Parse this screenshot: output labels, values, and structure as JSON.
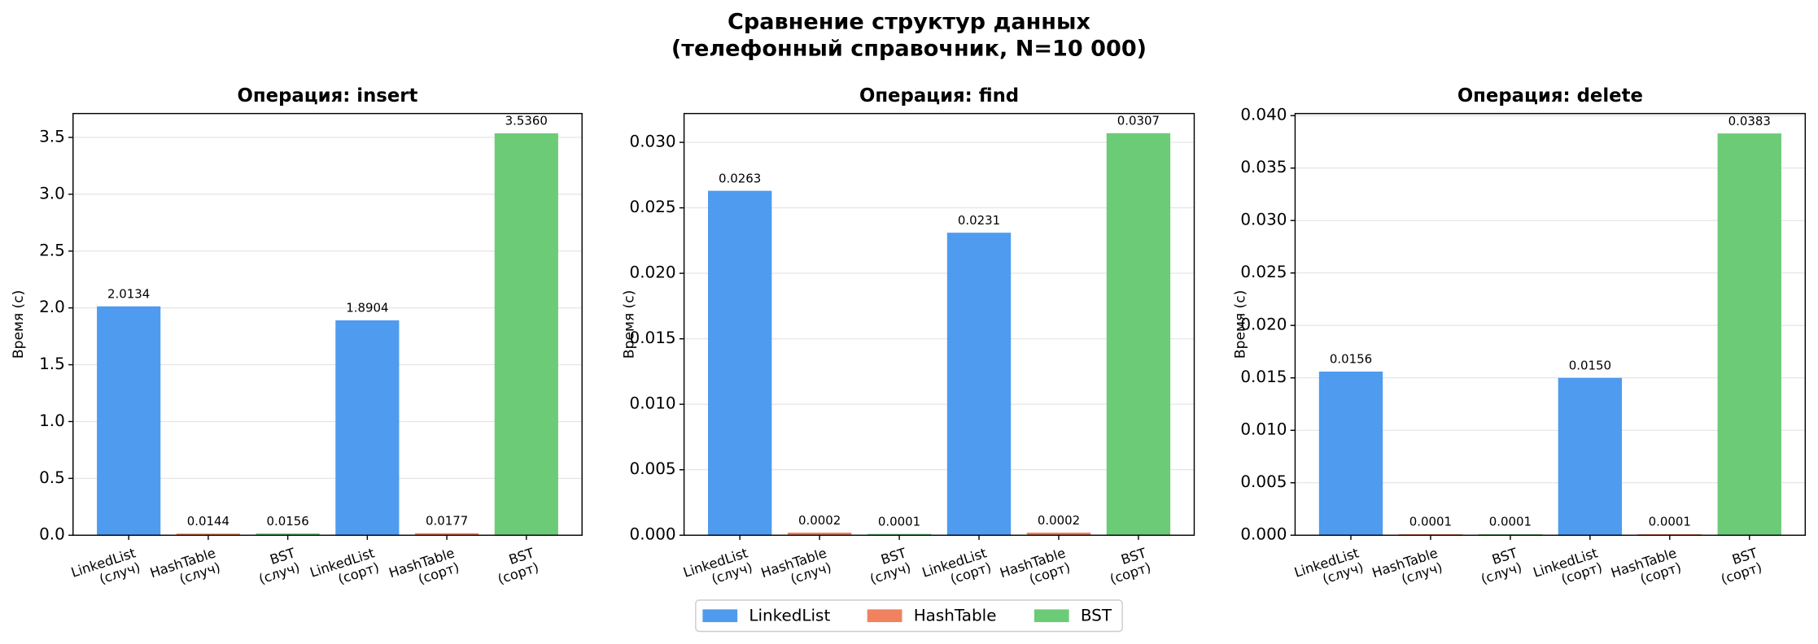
{
  "title": "Сравнение структур данных\n(телефонный справочник, N=10 000)",
  "legend": [
    {
      "name": "LinkedList",
      "color": "#4f9bef"
    },
    {
      "name": "HashTable",
      "color": "#f0825f"
    },
    {
      "name": "BST",
      "color": "#6ccb77"
    }
  ],
  "chart_data": [
    {
      "type": "bar",
      "title": "Операция: insert",
      "ylabel": "Время (с)",
      "categories": [
        "LinkedList\n(случ)",
        "HashTable\n(случ)",
        "BST\n(случ)",
        "LinkedList\n(сорт)",
        "HashTable\n(сорт)",
        "BST\n(сорт)"
      ],
      "series": [
        {
          "values": [
            2.0134,
            null,
            null,
            1.8904,
            null,
            null
          ],
          "value_labels": [
            "2.0134",
            null,
            null,
            "1.8904",
            null,
            null
          ]
        },
        {
          "values": [
            null,
            0.0144,
            null,
            null,
            0.0177,
            null
          ],
          "value_labels": [
            null,
            "0.0144",
            null,
            null,
            "0.0177",
            null
          ]
        },
        {
          "values": [
            null,
            null,
            0.0156,
            null,
            null,
            3.536
          ],
          "value_labels": [
            null,
            null,
            "0.0156",
            null,
            null,
            "3.5360"
          ]
        }
      ],
      "ylim": [
        0,
        3.71
      ],
      "yticks": [
        {
          "value": 0,
          "label": "0.0"
        },
        {
          "value": 0.5,
          "label": "0.5"
        },
        {
          "value": 1,
          "label": "1.0"
        },
        {
          "value": 1.5,
          "label": "1.5"
        },
        {
          "value": 2,
          "label": "2.0"
        },
        {
          "value": 2.5,
          "label": "2.5"
        },
        {
          "value": 3,
          "label": "3.0"
        },
        {
          "value": 3.5,
          "label": "3.5"
        }
      ],
      "grid": true
    },
    {
      "type": "bar",
      "title": "Операция: find",
      "ylabel": "Время (с)",
      "categories": [
        "LinkedList\n(случ)",
        "HashTable\n(случ)",
        "BST\n(случ)",
        "LinkedList\n(сорт)",
        "HashTable\n(сорт)",
        "BST\n(сорт)"
      ],
      "series": [
        {
          "values": [
            0.0263,
            null,
            null,
            0.0231,
            null,
            null
          ],
          "value_labels": [
            "0.0263",
            null,
            null,
            "0.0231",
            null,
            null
          ]
        },
        {
          "values": [
            null,
            0.0002,
            null,
            null,
            0.0002,
            null
          ],
          "value_labels": [
            null,
            "0.0002",
            null,
            null,
            "0.0002",
            null
          ]
        },
        {
          "values": [
            null,
            null,
            0.0001,
            null,
            null,
            0.0307
          ],
          "value_labels": [
            null,
            null,
            "0.0001",
            null,
            null,
            "0.0307"
          ]
        }
      ],
      "ylim": [
        0,
        0.0322
      ],
      "yticks": [
        {
          "value": 0,
          "label": "0.000"
        },
        {
          "value": 0.005,
          "label": "0.005"
        },
        {
          "value": 0.01,
          "label": "0.010"
        },
        {
          "value": 0.015,
          "label": "0.015"
        },
        {
          "value": 0.02,
          "label": "0.020"
        },
        {
          "value": 0.025,
          "label": "0.025"
        },
        {
          "value": 0.03,
          "label": "0.030"
        }
      ],
      "grid": true
    },
    {
      "type": "bar",
      "title": "Операция: delete",
      "ylabel": "Время (с)",
      "categories": [
        "LinkedList\n(случ)",
        "HashTable\n(случ)",
        "BST\n(случ)",
        "LinkedList\n(сорт)",
        "HashTable\n(сорт)",
        "BST\n(сорт)"
      ],
      "series": [
        {
          "values": [
            0.0156,
            null,
            null,
            0.015,
            null,
            null
          ],
          "value_labels": [
            "0.0156",
            null,
            null,
            "0.0150",
            null,
            null
          ]
        },
        {
          "values": [
            null,
            0.0001,
            null,
            null,
            0.0001,
            null
          ],
          "value_labels": [
            null,
            "0.0001",
            null,
            null,
            "0.0001",
            null
          ]
        },
        {
          "values": [
            null,
            null,
            0.0001,
            null,
            null,
            0.0383
          ],
          "value_labels": [
            null,
            null,
            "0.0001",
            null,
            null,
            "0.0383"
          ]
        }
      ],
      "ylim": [
        0,
        0.0402
      ],
      "yticks": [
        {
          "value": 0,
          "label": "0.000"
        },
        {
          "value": 0.005,
          "label": "0.005"
        },
        {
          "value": 0.01,
          "label": "0.010"
        },
        {
          "value": 0.015,
          "label": "0.015"
        },
        {
          "value": 0.02,
          "label": "0.020"
        },
        {
          "value": 0.025,
          "label": "0.025"
        },
        {
          "value": 0.03,
          "label": "0.030"
        },
        {
          "value": 0.035,
          "label": "0.035"
        },
        {
          "value": 0.04,
          "label": "0.040"
        }
      ],
      "grid": true
    }
  ]
}
